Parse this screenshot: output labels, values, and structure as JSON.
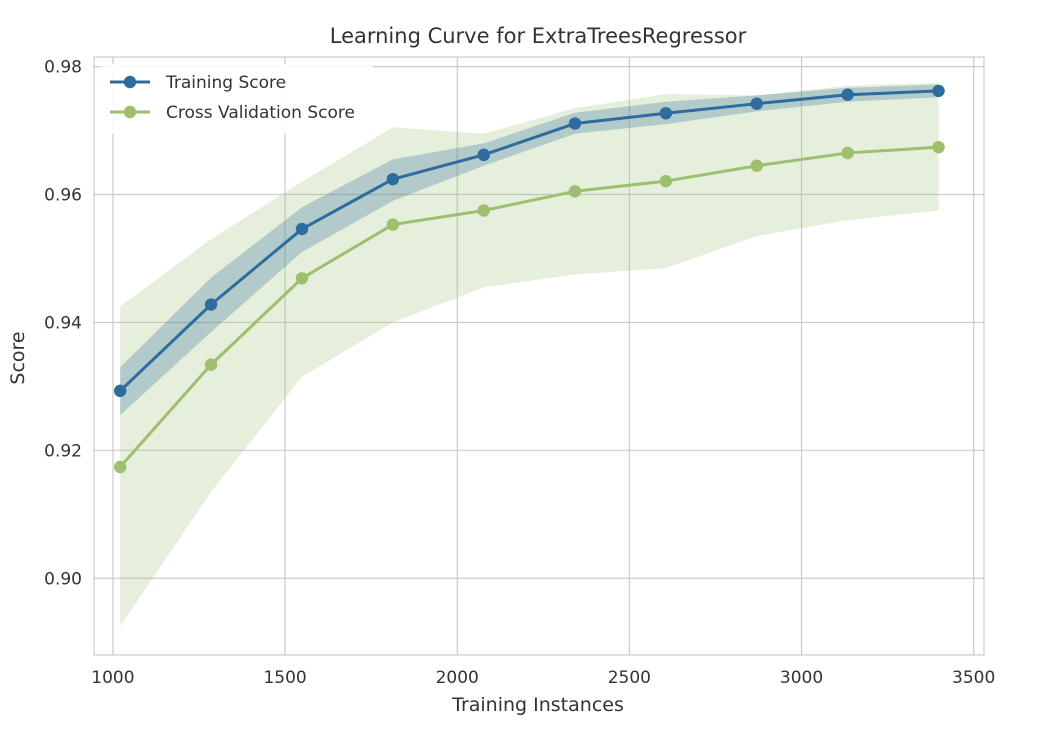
{
  "chart_data": {
    "type": "line",
    "title": "Learning Curve for ExtraTreesRegressor",
    "xlabel": "Training Instances",
    "ylabel": "Score",
    "xlim": [
      945,
      3530
    ],
    "ylim": [
      0.888,
      0.9815
    ],
    "xticks": [
      1000,
      1500,
      2000,
      2500,
      3000,
      3500
    ],
    "xtick_labels": [
      "1000",
      "1500",
      "2000",
      "2500",
      "3000",
      "3500"
    ],
    "yticks": [
      0.9,
      0.92,
      0.94,
      0.96,
      0.98
    ],
    "ytick_labels": [
      "0.90",
      "0.92",
      "0.94",
      "0.96",
      "0.98"
    ],
    "grid": true,
    "legend_position": "top-left",
    "x": [
      1021,
      1285,
      1549,
      1813,
      2077,
      2342,
      2606,
      2870,
      3134,
      3398
    ],
    "series": [
      {
        "name": "Training Score",
        "color": "#2e6c9f",
        "values": [
          0.9293,
          0.9428,
          0.9546,
          0.9624,
          0.9662,
          0.9711,
          0.9727,
          0.9742,
          0.9756,
          0.9762
        ],
        "lower": [
          0.9255,
          0.9385,
          0.951,
          0.959,
          0.9645,
          0.9695,
          0.971,
          0.973,
          0.9745,
          0.9752
        ],
        "upper": [
          0.933,
          0.947,
          0.958,
          0.9655,
          0.968,
          0.9728,
          0.9745,
          0.9755,
          0.9767,
          0.9772
        ]
      },
      {
        "name": "Cross Validation Score",
        "color": "#9dbf6e",
        "values": [
          0.9174,
          0.9334,
          0.9469,
          0.9553,
          0.9575,
          0.9605,
          0.9621,
          0.9645,
          0.9665,
          0.9674
        ],
        "lower": [
          0.8925,
          0.9135,
          0.9315,
          0.94,
          0.9455,
          0.9475,
          0.9485,
          0.9535,
          0.956,
          0.9575
        ],
        "upper": [
          0.9425,
          0.953,
          0.962,
          0.9705,
          0.9695,
          0.9735,
          0.9757,
          0.9755,
          0.977,
          0.9775
        ]
      }
    ]
  }
}
